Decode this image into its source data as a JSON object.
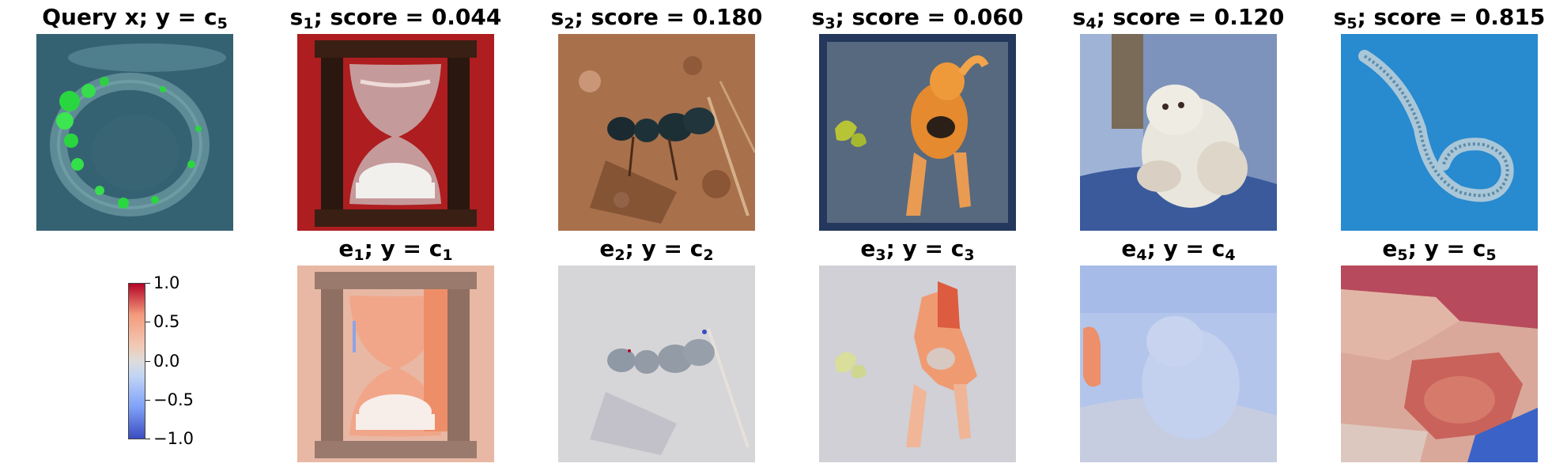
{
  "top_row": [
    {
      "prefix": "Query x; y = c",
      "sub": "5",
      "suffix": "",
      "image": "microscopy-worm-green-fluorescence"
    },
    {
      "prefix": "s",
      "sub": "1",
      "suffix": "; score = 0.044",
      "image": "hourglass"
    },
    {
      "prefix": "s",
      "sub": "2",
      "suffix": "; score = 0.180",
      "image": "ant-on-dirt"
    },
    {
      "prefix": "s",
      "sub": "3",
      "suffix": "; score = 0.060",
      "image": "dog-with-toy"
    },
    {
      "prefix": "s",
      "sub": "4",
      "suffix": "; score = 0.120",
      "image": "white-ferret"
    },
    {
      "prefix": "s",
      "sub": "5",
      "suffix": "; score = 0.815",
      "image": "nematode-worm"
    }
  ],
  "bottom_row": [
    {
      "prefix": "e",
      "sub": "1",
      "mid": "; y = c",
      "sub2": "1",
      "image": "hourglass-attribution-map"
    },
    {
      "prefix": "e",
      "sub": "2",
      "mid": "; y = c",
      "sub2": "2",
      "image": "ant-attribution-map"
    },
    {
      "prefix": "e",
      "sub": "3",
      "mid": "; y = c",
      "sub2": "3",
      "image": "dog-attribution-map"
    },
    {
      "prefix": "e",
      "sub": "4",
      "mid": "; y = c",
      "sub2": "4",
      "image": "ferret-attribution-map"
    },
    {
      "prefix": "e",
      "sub": "5",
      "mid": "; y = c",
      "sub2": "5",
      "image": "worm-attribution-map"
    }
  ],
  "colorbar": {
    "colormap": "coolwarm",
    "range": [
      -1.0,
      1.0
    ],
    "ticks": [
      "1.0",
      "0.5",
      "0.0",
      "−0.5",
      "−1.0"
    ],
    "colors": {
      "high": "#b40426",
      "mid": "#dddcdc",
      "low": "#3b4cc0"
    }
  }
}
